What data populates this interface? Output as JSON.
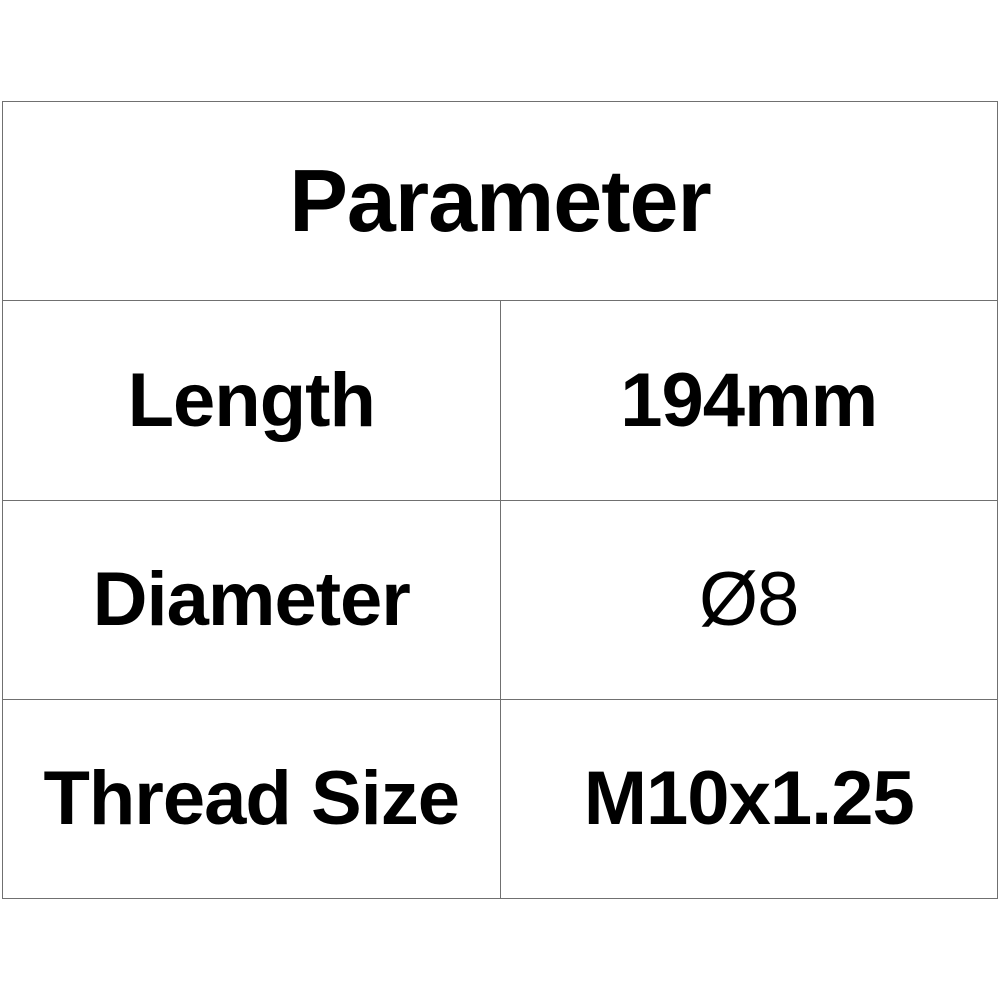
{
  "table": {
    "header": "Parameter",
    "rows": [
      {
        "label": "Length",
        "value": "194mm"
      },
      {
        "label": "Diameter",
        "value": "Ø8"
      },
      {
        "label": "Thread Size",
        "value": "M10x1.25"
      }
    ]
  }
}
